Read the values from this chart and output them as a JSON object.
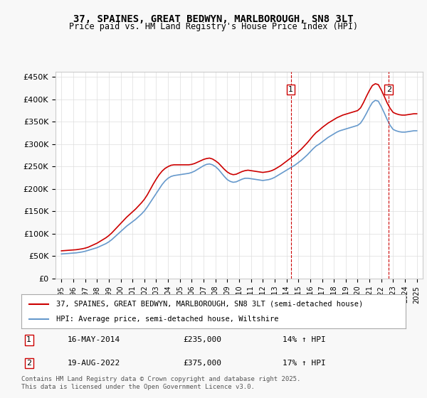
{
  "title": "37, SPAINES, GREAT BEDWYN, MARLBOROUGH, SN8 3LT",
  "subtitle": "Price paid vs. HM Land Registry's House Price Index (HPI)",
  "legend_line1": "37, SPAINES, GREAT BEDWYN, MARLBOROUGH, SN8 3LT (semi-detached house)",
  "legend_line2": "HPI: Average price, semi-detached house, Wiltshire",
  "annotation1": {
    "label": "1",
    "date": "16-MAY-2014",
    "price": 235000,
    "pct": "14% ↑ HPI",
    "x_year": 2014.37
  },
  "annotation2": {
    "label": "2",
    "date": "19-AUG-2022",
    "price": 375000,
    "pct": "17% ↑ HPI",
    "x_year": 2022.63
  },
  "footer": "Contains HM Land Registry data © Crown copyright and database right 2025.\nThis data is licensed under the Open Government Licence v3.0.",
  "ylim": [
    0,
    462000
  ],
  "xlim_start": 1994.5,
  "xlim_end": 2025.5,
  "background_color": "#f0f4ff",
  "plot_bg": "#ffffff",
  "red_color": "#cc0000",
  "blue_color": "#6699cc",
  "yticks": [
    0,
    50000,
    100000,
    150000,
    200000,
    250000,
    300000,
    350000,
    400000,
    450000
  ],
  "ytick_labels": [
    "£0",
    "£50K",
    "£100K",
    "£150K",
    "£200K",
    "£250K",
    "£300K",
    "£350K",
    "£400K",
    "£450K"
  ],
  "xticks": [
    1995,
    1996,
    1997,
    1998,
    1999,
    2000,
    2001,
    2002,
    2003,
    2004,
    2005,
    2006,
    2007,
    2008,
    2009,
    2010,
    2011,
    2012,
    2013,
    2014,
    2015,
    2016,
    2017,
    2018,
    2019,
    2020,
    2021,
    2022,
    2023,
    2024,
    2025
  ],
  "hpi_x": [
    1995.0,
    1995.25,
    1995.5,
    1995.75,
    1996.0,
    1996.25,
    1996.5,
    1996.75,
    1997.0,
    1997.25,
    1997.5,
    1997.75,
    1998.0,
    1998.25,
    1998.5,
    1998.75,
    1999.0,
    1999.25,
    1999.5,
    1999.75,
    2000.0,
    2000.25,
    2000.5,
    2000.75,
    2001.0,
    2001.25,
    2001.5,
    2001.75,
    2002.0,
    2002.25,
    2002.5,
    2002.75,
    2003.0,
    2003.25,
    2003.5,
    2003.75,
    2004.0,
    2004.25,
    2004.5,
    2004.75,
    2005.0,
    2005.25,
    2005.5,
    2005.75,
    2006.0,
    2006.25,
    2006.5,
    2006.75,
    2007.0,
    2007.25,
    2007.5,
    2007.75,
    2008.0,
    2008.25,
    2008.5,
    2008.75,
    2009.0,
    2009.25,
    2009.5,
    2009.75,
    2010.0,
    2010.25,
    2010.5,
    2010.75,
    2011.0,
    2011.25,
    2011.5,
    2011.75,
    2012.0,
    2012.25,
    2012.5,
    2012.75,
    2013.0,
    2013.25,
    2013.5,
    2013.75,
    2014.0,
    2014.25,
    2014.5,
    2014.75,
    2015.0,
    2015.25,
    2015.5,
    2015.75,
    2016.0,
    2016.25,
    2016.5,
    2016.75,
    2017.0,
    2017.25,
    2017.5,
    2017.75,
    2018.0,
    2018.25,
    2018.5,
    2018.75,
    2019.0,
    2019.25,
    2019.5,
    2019.75,
    2020.0,
    2020.25,
    2020.5,
    2020.75,
    2021.0,
    2021.25,
    2021.5,
    2021.75,
    2022.0,
    2022.25,
    2022.5,
    2022.75,
    2023.0,
    2023.25,
    2023.5,
    2023.75,
    2024.0,
    2024.25,
    2024.5,
    2024.75,
    2025.0
  ],
  "hpi_y": [
    55000,
    55500,
    56000,
    56500,
    57000,
    57500,
    58500,
    59500,
    61000,
    63000,
    65000,
    67000,
    69000,
    72000,
    75000,
    78000,
    82000,
    87000,
    93000,
    99000,
    105000,
    111000,
    117000,
    122000,
    127000,
    132000,
    138000,
    144000,
    151000,
    160000,
    170000,
    180000,
    190000,
    200000,
    210000,
    218000,
    224000,
    228000,
    230000,
    231000,
    232000,
    233000,
    234000,
    235000,
    237000,
    240000,
    244000,
    248000,
    252000,
    255000,
    256000,
    254000,
    250000,
    244000,
    236000,
    228000,
    221000,
    217000,
    215000,
    216000,
    219000,
    222000,
    224000,
    224000,
    223000,
    222000,
    221000,
    220000,
    219000,
    220000,
    221000,
    223000,
    226000,
    230000,
    234000,
    238000,
    242000,
    246000,
    250000,
    254000,
    259000,
    264000,
    270000,
    276000,
    283000,
    290000,
    296000,
    300000,
    305000,
    310000,
    315000,
    319000,
    323000,
    327000,
    330000,
    332000,
    334000,
    336000,
    338000,
    340000,
    342000,
    347000,
    357000,
    369000,
    382000,
    393000,
    398000,
    396000,
    384000,
    370000,
    355000,
    342000,
    333000,
    330000,
    328000,
    327000,
    327000,
    328000,
    329000,
    330000,
    330000
  ],
  "price_x": [
    1995.0,
    1995.25,
    1995.5,
    1995.75,
    1996.0,
    1996.25,
    1996.5,
    1996.75,
    1997.0,
    1997.25,
    1997.5,
    1997.75,
    1998.0,
    1998.25,
    1998.5,
    1998.75,
    1999.0,
    1999.25,
    1999.5,
    1999.75,
    2000.0,
    2000.25,
    2000.5,
    2000.75,
    2001.0,
    2001.25,
    2001.5,
    2001.75,
    2002.0,
    2002.25,
    2002.5,
    2002.75,
    2003.0,
    2003.25,
    2003.5,
    2003.75,
    2004.0,
    2004.25,
    2004.5,
    2004.75,
    2005.0,
    2005.25,
    2005.5,
    2005.75,
    2006.0,
    2006.25,
    2006.5,
    2006.75,
    2007.0,
    2007.25,
    2007.5,
    2007.75,
    2008.0,
    2008.25,
    2008.5,
    2008.75,
    2009.0,
    2009.25,
    2009.5,
    2009.75,
    2010.0,
    2010.25,
    2010.5,
    2010.75,
    2011.0,
    2011.25,
    2011.5,
    2011.75,
    2012.0,
    2012.25,
    2012.5,
    2012.75,
    2013.0,
    2013.25,
    2013.5,
    2013.75,
    2014.0,
    2014.25,
    2014.5,
    2014.75,
    2015.0,
    2015.25,
    2015.5,
    2015.75,
    2016.0,
    2016.25,
    2016.5,
    2016.75,
    2017.0,
    2017.25,
    2017.5,
    2017.75,
    2018.0,
    2018.25,
    2018.5,
    2018.75,
    2019.0,
    2019.25,
    2019.5,
    2019.75,
    2020.0,
    2020.25,
    2020.5,
    2020.75,
    2021.0,
    2021.25,
    2021.5,
    2021.75,
    2022.0,
    2022.25,
    2022.5,
    2022.75,
    2023.0,
    2023.25,
    2023.5,
    2023.75,
    2024.0,
    2024.25,
    2024.5,
    2024.75,
    2025.0
  ],
  "price_y": [
    62000,
    62500,
    63000,
    63500,
    64000,
    64500,
    65500,
    66500,
    68000,
    70000,
    73000,
    76000,
    79000,
    83000,
    87000,
    91000,
    96000,
    102000,
    109000,
    116000,
    123000,
    130000,
    137000,
    143000,
    149000,
    155000,
    162000,
    169000,
    177000,
    187000,
    199000,
    211000,
    222000,
    232000,
    240000,
    246000,
    250000,
    253000,
    254000,
    254000,
    254000,
    254000,
    254000,
    254000,
    255000,
    257000,
    260000,
    263000,
    266000,
    268000,
    269000,
    267000,
    263000,
    258000,
    251000,
    244000,
    238000,
    234000,
    232000,
    233000,
    236000,
    239000,
    241000,
    242000,
    241000,
    240000,
    239000,
    238000,
    237000,
    238000,
    239000,
    241000,
    244000,
    248000,
    252000,
    257000,
    262000,
    267000,
    272000,
    277000,
    283000,
    289000,
    296000,
    303000,
    311000,
    319000,
    326000,
    331000,
    337000,
    342000,
    347000,
    351000,
    355000,
    359000,
    362000,
    365000,
    367000,
    369000,
    371000,
    373000,
    375000,
    381000,
    393000,
    407000,
    420000,
    431000,
    435000,
    433000,
    421000,
    407000,
    392000,
    380000,
    371000,
    368000,
    366000,
    365000,
    365000,
    366000,
    367000,
    368000,
    368000
  ]
}
